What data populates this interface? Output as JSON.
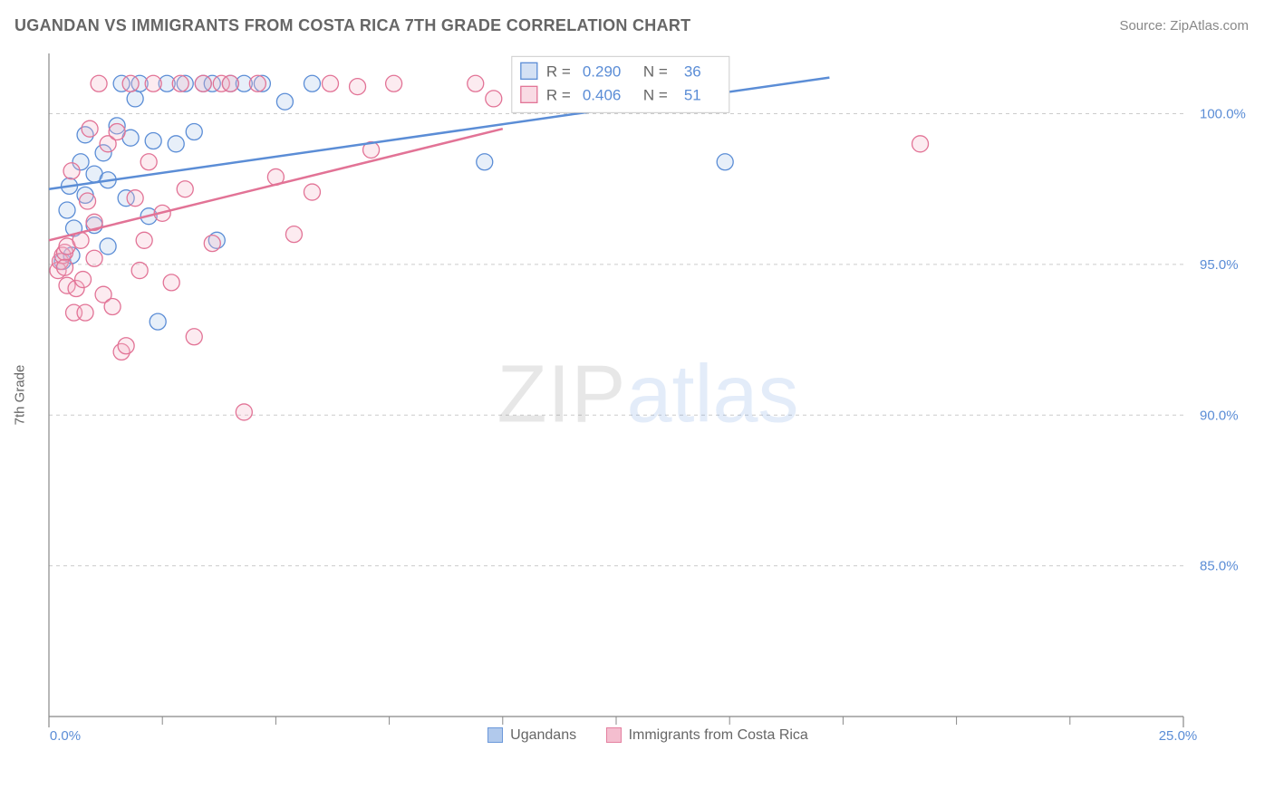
{
  "header": {
    "title": "UGANDAN VS IMMIGRANTS FROM COSTA RICA 7TH GRADE CORRELATION CHART",
    "source": "Source: ZipAtlas.com"
  },
  "watermark": {
    "part1": "ZIP",
    "part2": "atlas"
  },
  "chart": {
    "type": "scatter",
    "background_color": "#ffffff",
    "grid_color": "#cccccc",
    "axis_color": "#888888",
    "label_color_axis": "#666666",
    "label_color_ticks": "#5b8dd6",
    "label_fontsize": 15,
    "y_axis_label": "7th Grade",
    "xlim": [
      0,
      25
    ],
    "ylim": [
      80,
      102
    ],
    "x_ticks_major": [
      0,
      25
    ],
    "x_tick_labels": [
      "0.0%",
      "25.0%"
    ],
    "x_ticks_minor": [
      2.5,
      5,
      7.5,
      10,
      12.5,
      15,
      17.5,
      20,
      22.5
    ],
    "y_ticks": [
      85,
      90,
      95,
      100
    ],
    "y_tick_labels": [
      "85.0%",
      "90.0%",
      "95.0%",
      "100.0%"
    ],
    "marker_radius": 9,
    "marker_stroke_width": 1.3,
    "marker_fill_opacity": 0.28,
    "series": [
      {
        "id": "ugandans",
        "label": "Ugandans",
        "color_stroke": "#5b8dd6",
        "color_fill": "#a9c4ea",
        "R": "0.290",
        "N": "36",
        "trend": {
          "x1": 0,
          "y1": 97.5,
          "x2": 17.2,
          "y2": 101.2
        },
        "data": [
          [
            0.3,
            95.1
          ],
          [
            0.4,
            96.8
          ],
          [
            0.45,
            97.6
          ],
          [
            0.5,
            95.3
          ],
          [
            0.55,
            96.2
          ],
          [
            0.7,
            98.4
          ],
          [
            0.8,
            97.3
          ],
          [
            0.8,
            99.3
          ],
          [
            1.0,
            96.3
          ],
          [
            1.0,
            98.0
          ],
          [
            1.2,
            98.7
          ],
          [
            1.3,
            95.6
          ],
          [
            1.3,
            97.8
          ],
          [
            1.5,
            99.6
          ],
          [
            1.6,
            101.0
          ],
          [
            1.7,
            97.2
          ],
          [
            1.8,
            99.2
          ],
          [
            1.9,
            100.5
          ],
          [
            2.0,
            101.0
          ],
          [
            2.2,
            96.6
          ],
          [
            2.3,
            99.1
          ],
          [
            2.4,
            93.1
          ],
          [
            2.6,
            101.0
          ],
          [
            2.8,
            99.0
          ],
          [
            3.0,
            101.0
          ],
          [
            3.2,
            99.4
          ],
          [
            3.4,
            101.0
          ],
          [
            3.6,
            101.0
          ],
          [
            3.7,
            95.8
          ],
          [
            4.0,
            101.0
          ],
          [
            4.3,
            101.0
          ],
          [
            4.7,
            101.0
          ],
          [
            5.2,
            100.4
          ],
          [
            5.8,
            101.0
          ],
          [
            9.6,
            98.4
          ],
          [
            14.9,
            98.4
          ]
        ]
      },
      {
        "id": "costa_rica",
        "label": "Immigrants from Costa Rica",
        "color_stroke": "#e27396",
        "color_fill": "#f3b7ca",
        "R": "0.406",
        "N": "51",
        "trend": {
          "x1": 0,
          "y1": 95.8,
          "x2": 10.0,
          "y2": 99.5
        },
        "data": [
          [
            0.2,
            94.8
          ],
          [
            0.25,
            95.1
          ],
          [
            0.3,
            95.3
          ],
          [
            0.35,
            95.4
          ],
          [
            0.35,
            94.9
          ],
          [
            0.4,
            95.6
          ],
          [
            0.4,
            94.3
          ],
          [
            0.5,
            98.1
          ],
          [
            0.55,
            93.4
          ],
          [
            0.6,
            94.2
          ],
          [
            0.7,
            95.8
          ],
          [
            0.75,
            94.5
          ],
          [
            0.8,
            93.4
          ],
          [
            0.85,
            97.1
          ],
          [
            0.9,
            99.5
          ],
          [
            1.0,
            95.2
          ],
          [
            1.0,
            96.4
          ],
          [
            1.1,
            101.0
          ],
          [
            1.2,
            94.0
          ],
          [
            1.3,
            99.0
          ],
          [
            1.4,
            93.6
          ],
          [
            1.5,
            99.4
          ],
          [
            1.6,
            92.1
          ],
          [
            1.7,
            92.3
          ],
          [
            1.8,
            101.0
          ],
          [
            1.9,
            97.2
          ],
          [
            2.0,
            94.8
          ],
          [
            2.1,
            95.8
          ],
          [
            2.2,
            98.4
          ],
          [
            2.3,
            101.0
          ],
          [
            2.5,
            96.7
          ],
          [
            2.7,
            94.4
          ],
          [
            2.9,
            101.0
          ],
          [
            3.0,
            97.5
          ],
          [
            3.2,
            92.6
          ],
          [
            3.4,
            101.0
          ],
          [
            3.6,
            95.7
          ],
          [
            3.8,
            101.0
          ],
          [
            4.0,
            101.0
          ],
          [
            4.3,
            90.1
          ],
          [
            4.6,
            101.0
          ],
          [
            5.0,
            97.9
          ],
          [
            5.4,
            96.0
          ],
          [
            5.8,
            97.4
          ],
          [
            6.2,
            101.0
          ],
          [
            6.8,
            100.9
          ],
          [
            7.1,
            98.8
          ],
          [
            7.6,
            101.0
          ],
          [
            9.4,
            101.0
          ],
          [
            9.8,
            100.5
          ],
          [
            19.2,
            99.0
          ]
        ]
      }
    ],
    "stat_box": {
      "x": 10.2,
      "y_top": 101.9,
      "width": 4.2,
      "labels": {
        "R": "R  =",
        "N": "N  ="
      }
    },
    "legend": {
      "position": "bottom-center"
    }
  }
}
